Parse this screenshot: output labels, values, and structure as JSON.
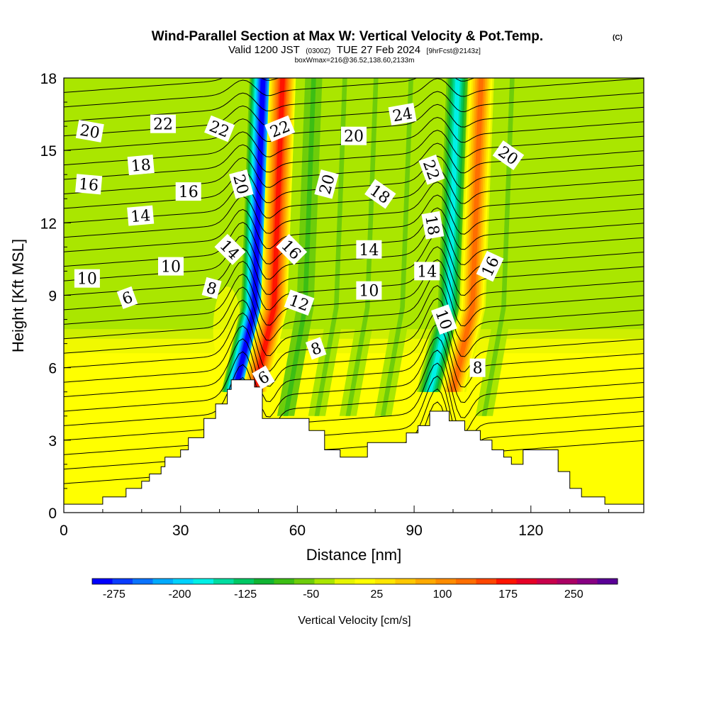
{
  "title": {
    "line1": "Wind-Parallel Section at Max W: Vertical Velocity & Pot.Temp.",
    "copyright": "(C)",
    "line2_a": "Valid 1200 JST",
    "line2_b": "(0300Z)",
    "line2_c": "TUE 27 Feb 2024",
    "line2_d": "[9hrFcst@2143z]",
    "line3": "boxWmax=216@36.52,138.60,2133m"
  },
  "chart_data": {
    "type": "heatmap",
    "xlabel": "Distance [nm]",
    "ylabel": "Height [Kft MSL]",
    "xlim": [
      0,
      149
    ],
    "ylim": [
      0,
      18
    ],
    "xticks": [
      0,
      30,
      60,
      90,
      120
    ],
    "yticks": [
      0,
      3,
      6,
      9,
      12,
      15,
      18
    ],
    "colorbar": {
      "title": "Vertical Velocity [cm/s]",
      "range": [
        -300,
        300
      ],
      "step": 25,
      "tick_values": [
        -275,
        -200,
        -125,
        -50,
        25,
        100,
        175,
        250
      ],
      "colors": [
        "#0000ff",
        "#0a3cff",
        "#0a73ff",
        "#00aaff",
        "#00d2ff",
        "#00f0e6",
        "#00dca0",
        "#00c864",
        "#11b432",
        "#3cbe14",
        "#6ecd0a",
        "#aae600",
        "#e6f500",
        "#ffff00",
        "#ffe600",
        "#ffc800",
        "#ffaa00",
        "#ff8c00",
        "#ff6e00",
        "#ff4600",
        "#ff1400",
        "#e60026",
        "#c8004b",
        "#aa0064",
        "#870082",
        "#5a0096"
      ]
    },
    "velocity_features": [
      {
        "x": 49,
        "sign": "down",
        "peak": -280
      },
      {
        "x": 54,
        "sign": "up",
        "peak": 200
      },
      {
        "x": 62,
        "sign": "down",
        "peak": -60
      },
      {
        "x": 70,
        "sign": "down",
        "peak": -50
      },
      {
        "x": 78,
        "sign": "down",
        "peak": -40
      },
      {
        "x": 87,
        "sign": "down",
        "peak": -50
      },
      {
        "x": 99,
        "sign": "down",
        "peak": -170
      },
      {
        "x": 105,
        "sign": "up",
        "peak": 170
      },
      {
        "x": 113,
        "sign": "down",
        "peak": -50
      }
    ],
    "terrain": [
      [
        0,
        0.35
      ],
      [
        10,
        0.35
      ],
      [
        10,
        0.65
      ],
      [
        16,
        0.65
      ],
      [
        16,
        1.0
      ],
      [
        20,
        1.0
      ],
      [
        20,
        1.3
      ],
      [
        22,
        1.3
      ],
      [
        22,
        1.6
      ],
      [
        25,
        1.6
      ],
      [
        25,
        1.9
      ],
      [
        26,
        1.9
      ],
      [
        26,
        2.3
      ],
      [
        30,
        2.3
      ],
      [
        30,
        2.6
      ],
      [
        32,
        2.6
      ],
      [
        32,
        3.1
      ],
      [
        36,
        3.1
      ],
      [
        36,
        3.9
      ],
      [
        39,
        3.9
      ],
      [
        39,
        4.5
      ],
      [
        42,
        4.5
      ],
      [
        42,
        5.1
      ],
      [
        43,
        5.1
      ],
      [
        43,
        5.5
      ],
      [
        49,
        5.5
      ],
      [
        49,
        5.2
      ],
      [
        51,
        5.2
      ],
      [
        51,
        3.9
      ],
      [
        63,
        3.9
      ],
      [
        63,
        3.4
      ],
      [
        67,
        3.4
      ],
      [
        67,
        2.6
      ],
      [
        71,
        2.6
      ],
      [
        71,
        2.3
      ],
      [
        78,
        2.3
      ],
      [
        78,
        2.9
      ],
      [
        88,
        2.9
      ],
      [
        88,
        3.3
      ],
      [
        91,
        3.3
      ],
      [
        91,
        3.6
      ],
      [
        94,
        3.6
      ],
      [
        94,
        4.2
      ],
      [
        99,
        4.2
      ],
      [
        99,
        3.8
      ],
      [
        103,
        3.8
      ],
      [
        103,
        3.4
      ],
      [
        107,
        3.4
      ],
      [
        107,
        3.0
      ],
      [
        110,
        3.0
      ],
      [
        110,
        2.6
      ],
      [
        113,
        2.6
      ],
      [
        113,
        2.3
      ],
      [
        115,
        2.3
      ],
      [
        115,
        2.0
      ],
      [
        118,
        2.0
      ],
      [
        118,
        2.6
      ],
      [
        127,
        2.6
      ],
      [
        127,
        1.7
      ],
      [
        130,
        1.7
      ],
      [
        130,
        1.0
      ],
      [
        133,
        1.0
      ],
      [
        133,
        0.65
      ],
      [
        139,
        0.65
      ],
      [
        139,
        0.35
      ],
      [
        149,
        0.35
      ]
    ],
    "contour_labels": [
      {
        "text": "20",
        "x": 6.7,
        "y": 15.8,
        "angle": 10
      },
      {
        "text": "22",
        "x": 25.5,
        "y": 16.1,
        "angle": 0
      },
      {
        "text": "22",
        "x": 40.0,
        "y": 15.9,
        "angle": 22
      },
      {
        "text": "22",
        "x": 55.5,
        "y": 15.9,
        "angle": -22
      },
      {
        "text": "20",
        "x": 74.5,
        "y": 15.6,
        "angle": 0
      },
      {
        "text": "24",
        "x": 87.0,
        "y": 16.5,
        "angle": -10
      },
      {
        "text": "20",
        "x": 114.2,
        "y": 14.8,
        "angle": 35
      },
      {
        "text": "18",
        "x": 19.8,
        "y": 14.4,
        "angle": -5
      },
      {
        "text": "16",
        "x": 6.4,
        "y": 13.6,
        "angle": 5
      },
      {
        "text": "16",
        "x": 32.0,
        "y": 13.3,
        "angle": 0
      },
      {
        "text": "20",
        "x": 45.6,
        "y": 13.6,
        "angle": 75
      },
      {
        "text": "20",
        "x": 67.5,
        "y": 13.6,
        "angle": -75
      },
      {
        "text": "18",
        "x": 81.3,
        "y": 13.2,
        "angle": 35
      },
      {
        "text": "22",
        "x": 94.5,
        "y": 14.2,
        "angle": 70
      },
      {
        "text": "14",
        "x": 19.7,
        "y": 12.3,
        "angle": -5
      },
      {
        "text": "18",
        "x": 94.8,
        "y": 11.9,
        "angle": 80
      },
      {
        "text": "14",
        "x": 42.7,
        "y": 10.9,
        "angle": 45
      },
      {
        "text": "16",
        "x": 58.5,
        "y": 10.9,
        "angle": 45
      },
      {
        "text": "14",
        "x": 78.4,
        "y": 10.9,
        "angle": 0
      },
      {
        "text": "14",
        "x": 93.3,
        "y": 10.0,
        "angle": 0
      },
      {
        "text": "16",
        "x": 109.5,
        "y": 10.2,
        "angle": -65
      },
      {
        "text": "10",
        "x": 27.5,
        "y": 10.2,
        "angle": 0
      },
      {
        "text": "10",
        "x": 6.0,
        "y": 9.7,
        "angle": 0
      },
      {
        "text": "10",
        "x": 78.4,
        "y": 9.2,
        "angle": 0
      },
      {
        "text": "8",
        "x": 38.0,
        "y": 9.3,
        "angle": 15
      },
      {
        "text": "6",
        "x": 16.3,
        "y": 8.9,
        "angle": -20
      },
      {
        "text": "12",
        "x": 60.5,
        "y": 8.7,
        "angle": 20
      },
      {
        "text": "10",
        "x": 97.7,
        "y": 8.0,
        "angle": 70
      },
      {
        "text": "8",
        "x": 64.8,
        "y": 6.8,
        "angle": -20
      },
      {
        "text": "8",
        "x": 106.3,
        "y": 6.0,
        "angle": 0
      },
      {
        "text": "6",
        "x": 51.3,
        "y": 5.6,
        "angle": -30
      }
    ]
  }
}
